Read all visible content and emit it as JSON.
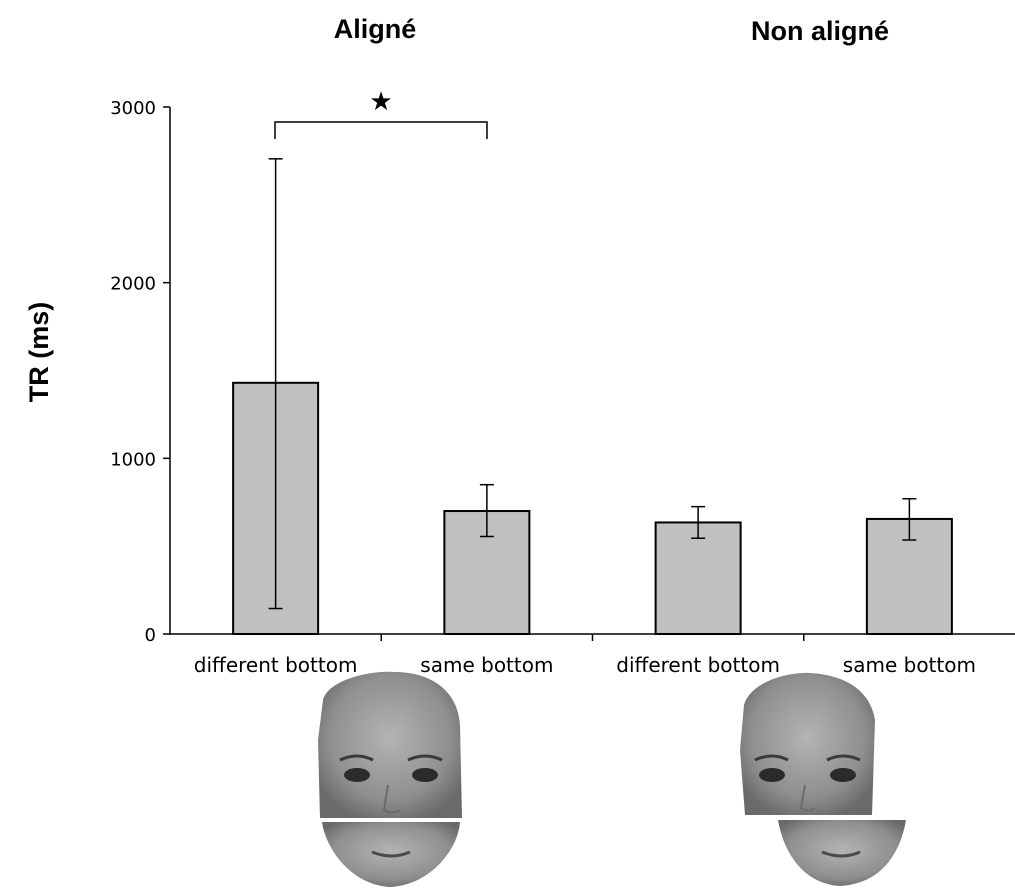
{
  "chart_data": {
    "type": "bar",
    "group_titles": [
      "Aligné",
      "Non aligné"
    ],
    "categories": [
      "different bottom",
      "same bottom",
      "different bottom",
      "same bottom"
    ],
    "values": [
      1430,
      700,
      635,
      655
    ],
    "error_low": [
      145,
      555,
      545,
      535
    ],
    "error_high": [
      2705,
      850,
      725,
      770
    ],
    "ylabel": "TR (ms)",
    "ylim": [
      0,
      3000
    ],
    "yticks": [
      0,
      1000,
      2000,
      3000
    ],
    "significance": {
      "between": [
        0,
        1
      ],
      "symbol": "★"
    },
    "grid": false,
    "colors": {
      "bar": "#c0c0c0",
      "outline": "#000000"
    }
  },
  "illustrations": [
    {
      "name": "aligned-composite-face-image"
    },
    {
      "name": "misaligned-composite-face-image"
    }
  ]
}
